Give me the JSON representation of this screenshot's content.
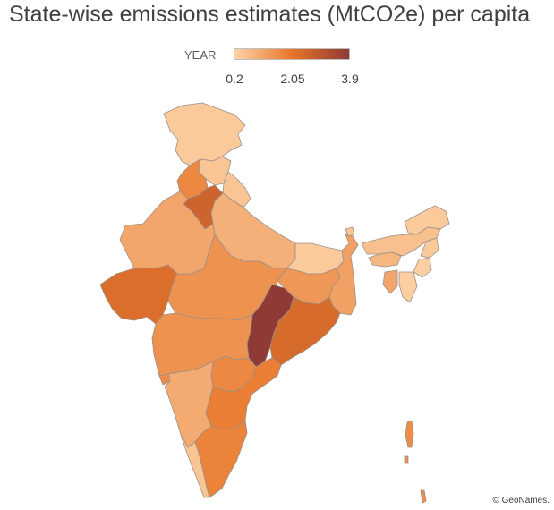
{
  "title": "State-wise emissions estimates (MtCO2e) per capita",
  "legend": {
    "label": "YEAR",
    "min": 0.2,
    "mid": 2.05,
    "max": 3.9,
    "min_label": "0.2",
    "mid_label": "2.05",
    "max_label": "3.9",
    "color_low": "#fdd4a9",
    "color_mid": "#e8762a",
    "color_high": "#8f3a35"
  },
  "attribution": "© GeoNames.",
  "chart_data": {
    "type": "choropleth",
    "value_range": [
      0.2,
      3.9
    ],
    "regions": [
      {
        "name": "Jammu and Kashmir",
        "value": 0.4
      },
      {
        "name": "Himachal Pradesh",
        "value": 0.5
      },
      {
        "name": "Punjab",
        "value": 1.7
      },
      {
        "name": "Haryana",
        "value": 2.6
      },
      {
        "name": "Uttarakhand",
        "value": 0.5
      },
      {
        "name": "Rajasthan",
        "value": 1.1
      },
      {
        "name": "Uttar Pradesh",
        "value": 0.9
      },
      {
        "name": "Gujarat",
        "value": 2.3
      },
      {
        "name": "Madhya Pradesh",
        "value": 1.5
      },
      {
        "name": "Bihar",
        "value": 0.4
      },
      {
        "name": "Jharkhand",
        "value": 1.4
      },
      {
        "name": "West Bengal",
        "value": 1.2
      },
      {
        "name": "Chhattisgarh",
        "value": 3.9
      },
      {
        "name": "Odisha",
        "value": 2.4
      },
      {
        "name": "Maharashtra",
        "value": 1.5
      },
      {
        "name": "Telangana",
        "value": 1.7
      },
      {
        "name": "Andhra Pradesh",
        "value": 1.9
      },
      {
        "name": "Karnataka",
        "value": 1.0
      },
      {
        "name": "Goa",
        "value": 1.6
      },
      {
        "name": "Kerala",
        "value": 0.5
      },
      {
        "name": "Tamil Nadu",
        "value": 1.8
      },
      {
        "name": "Sikkim",
        "value": 0.5
      },
      {
        "name": "Arunachal Pradesh",
        "value": 0.4
      },
      {
        "name": "Assam",
        "value": 0.6
      },
      {
        "name": "Meghalaya",
        "value": 0.8
      },
      {
        "name": "Nagaland",
        "value": 0.4
      },
      {
        "name": "Manipur",
        "value": 0.3
      },
      {
        "name": "Mizoram",
        "value": 0.3
      },
      {
        "name": "Tripura",
        "value": 1.1
      },
      {
        "name": "Delhi",
        "value": 1.4
      },
      {
        "name": "Andaman and Nicobar Islands",
        "value": 1.6
      }
    ]
  }
}
